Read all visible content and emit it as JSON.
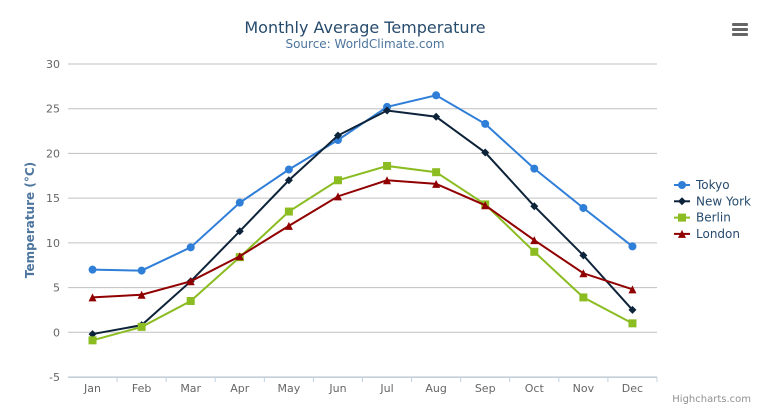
{
  "chart_data": {
    "type": "line",
    "title": "Monthly Average Temperature",
    "subtitle": "Source: WorldClimate.com",
    "xlabel": "",
    "ylabel": "Temperature (°C)",
    "categories": [
      "Jan",
      "Feb",
      "Mar",
      "Apr",
      "May",
      "Jun",
      "Jul",
      "Aug",
      "Sep",
      "Oct",
      "Nov",
      "Dec"
    ],
    "ylim": [
      -5,
      30
    ],
    "yticks": [
      -5,
      0,
      5,
      10,
      15,
      20,
      25,
      30
    ],
    "grid": true,
    "legend_position": "right",
    "series": [
      {
        "name": "Tokyo",
        "color": "#2f7ed8",
        "marker": "circle",
        "values": [
          7.0,
          6.9,
          9.5,
          14.5,
          18.2,
          21.5,
          25.2,
          26.5,
          23.3,
          18.3,
          13.9,
          9.6
        ]
      },
      {
        "name": "New York",
        "color": "#0d233a",
        "marker": "diamond",
        "values": [
          -0.2,
          0.8,
          5.7,
          11.3,
          17.0,
          22.0,
          24.8,
          24.1,
          20.1,
          14.1,
          8.6,
          2.5
        ]
      },
      {
        "name": "Berlin",
        "color": "#8bbc21",
        "marker": "square",
        "values": [
          -0.9,
          0.6,
          3.5,
          8.4,
          13.5,
          17.0,
          18.6,
          17.9,
          14.3,
          9.0,
          3.9,
          1.0
        ]
      },
      {
        "name": "London",
        "color": "#910000",
        "marker": "triangle",
        "values": [
          3.9,
          4.2,
          5.7,
          8.5,
          11.9,
          15.2,
          17.0,
          16.6,
          14.2,
          10.3,
          6.6,
          4.8
        ]
      }
    ]
  },
  "credits": "Highcharts.com",
  "menu_icon": "hamburger-menu-icon"
}
